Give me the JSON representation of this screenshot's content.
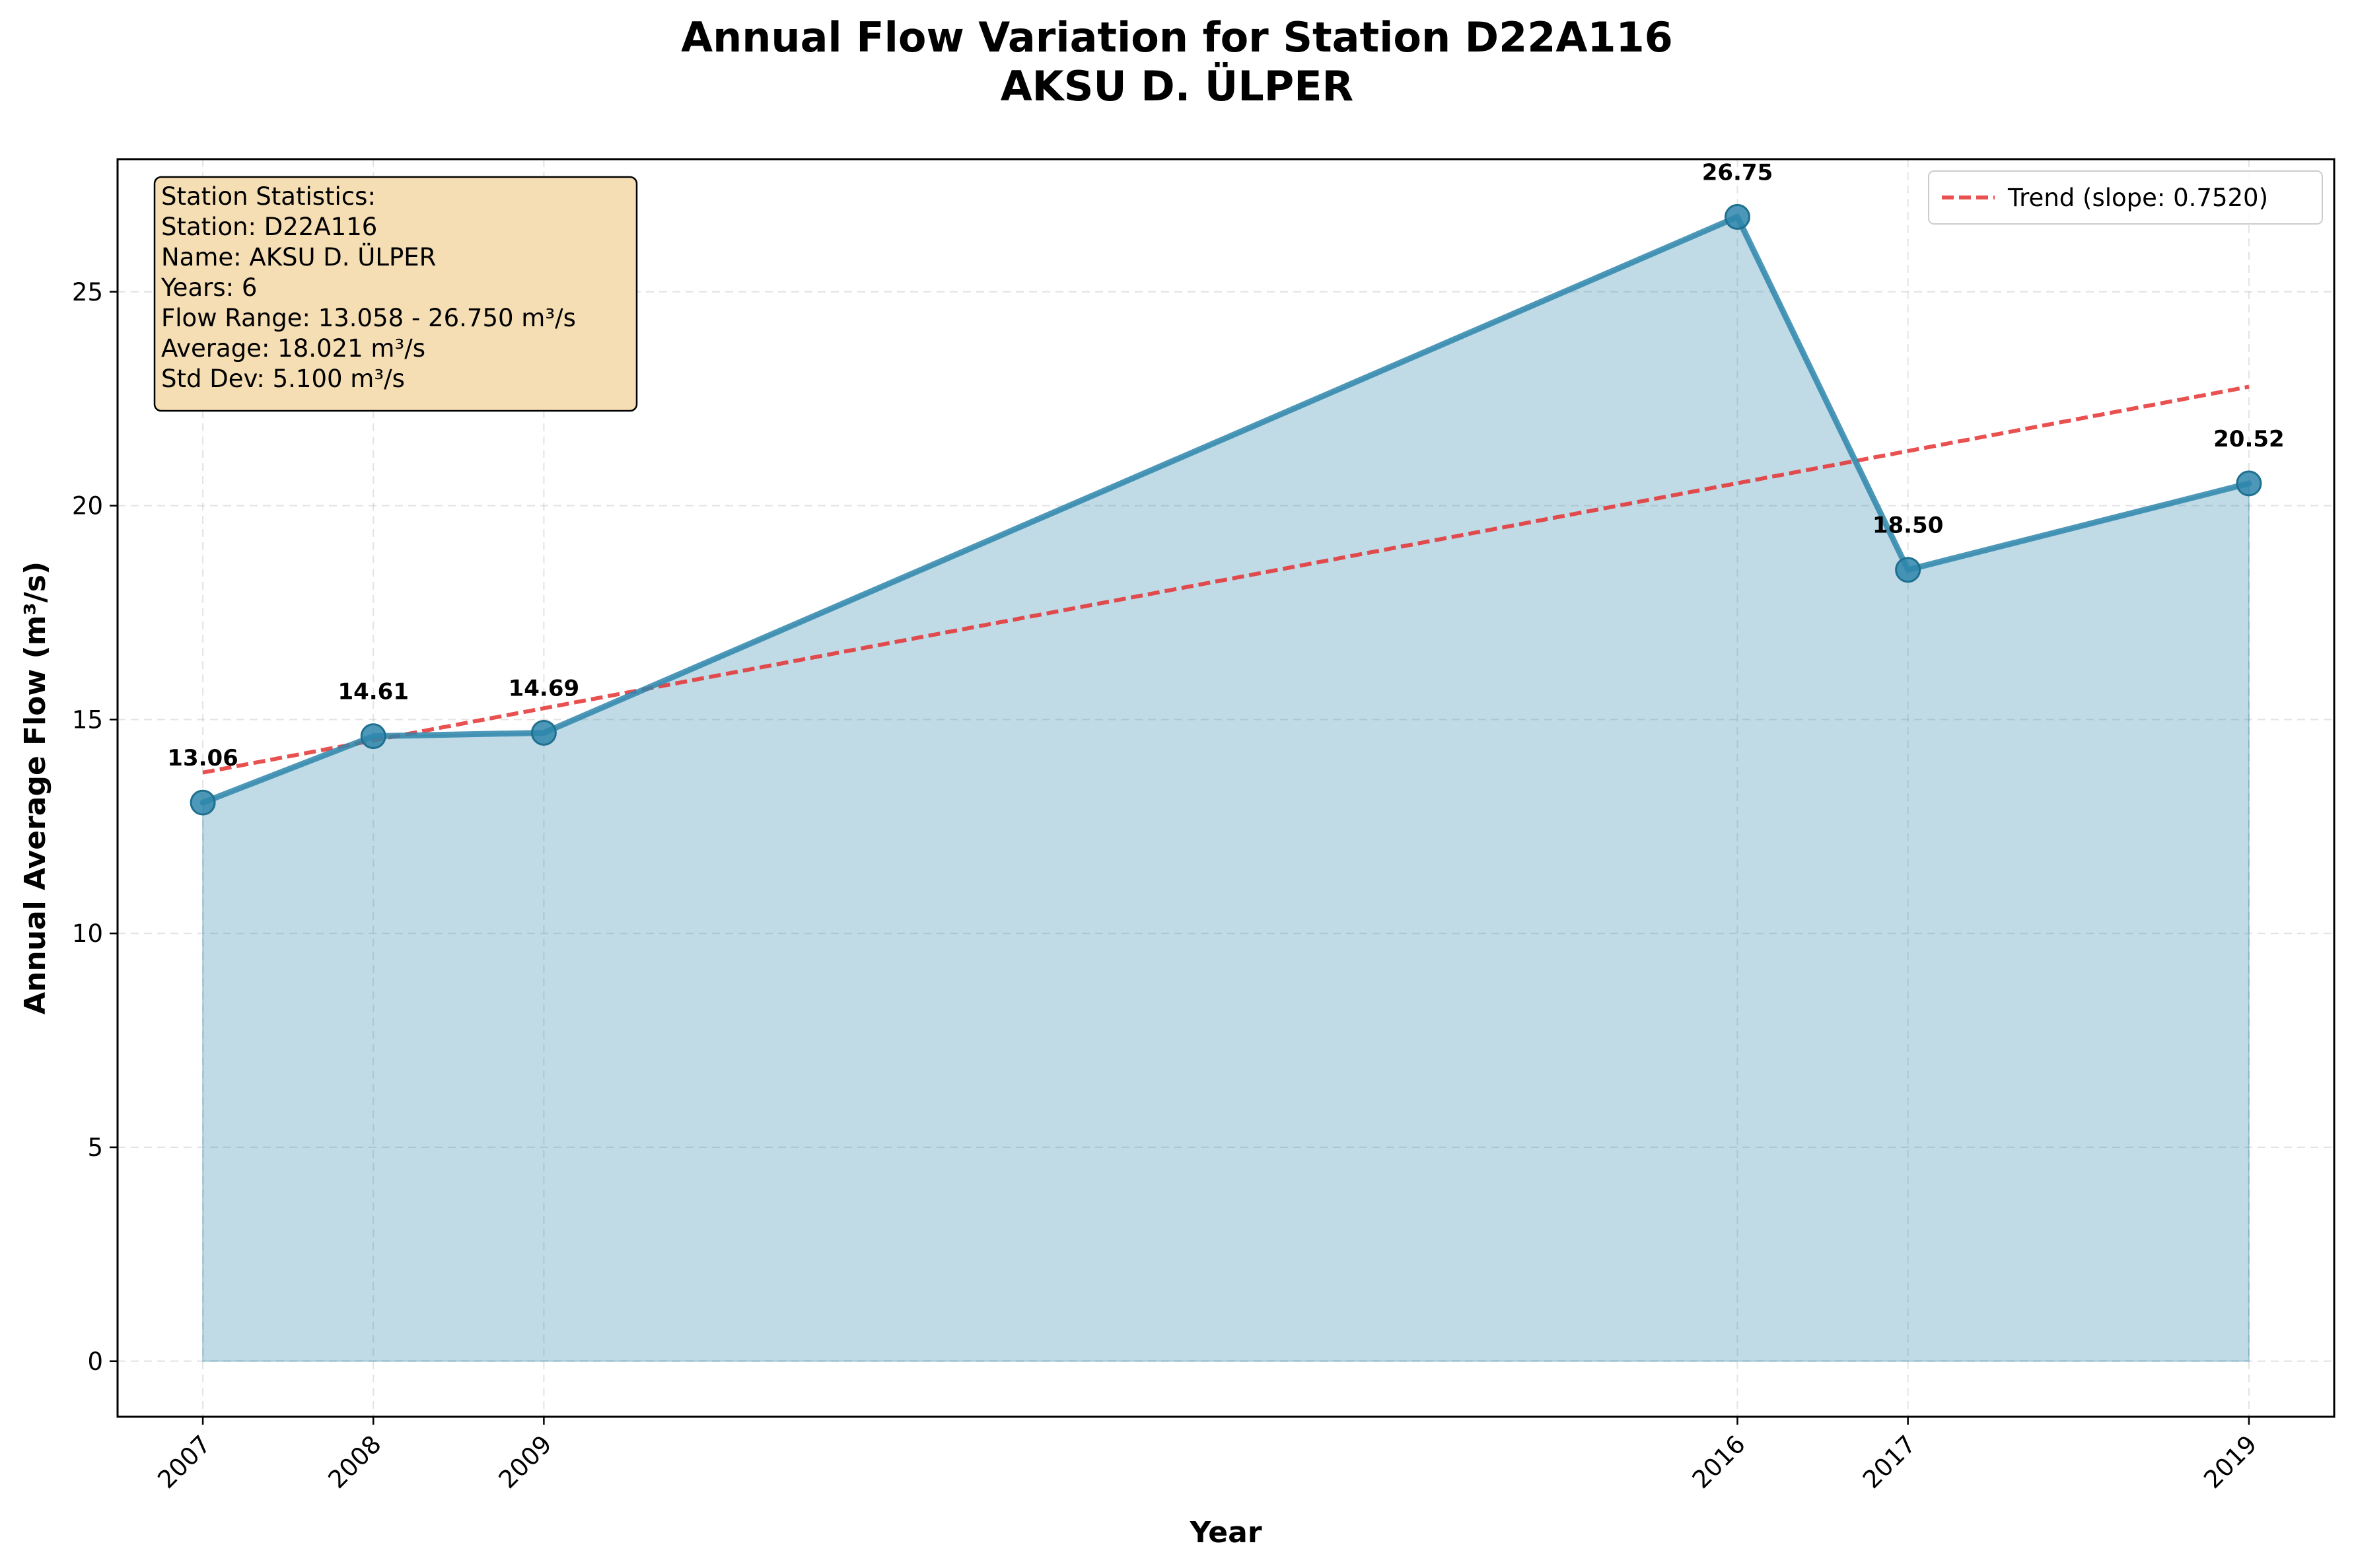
{
  "chart_data": {
    "type": "line",
    "title": "Annual Flow Variation for Station D22A116",
    "subtitle": "AKSU D. ÜLPER",
    "xlabel": "Year",
    "ylabel": "Annual Average Flow (m³/s)",
    "x": [
      2007,
      2008,
      2009,
      2016,
      2017,
      2019
    ],
    "x_tick_labels": [
      "2007",
      "2008",
      "2009",
      "2016",
      "2017",
      "2019"
    ],
    "xlim": [
      2006.5,
      2019.5
    ],
    "ylim": [
      -1.3,
      28.1
    ],
    "y_ticks": [
      0,
      5,
      10,
      15,
      20,
      25
    ],
    "grid": true,
    "series": [
      {
        "values": [
          13.058,
          14.61,
          14.69,
          26.75,
          18.5,
          20.52
        ],
        "data_labels": [
          "13.06",
          "14.61",
          "14.69",
          "26.75",
          "18.50",
          "20.52"
        ],
        "color": "#2E86AB",
        "fill": "area"
      }
    ],
    "trend": {
      "name": "Trend (slope: 0.7520)",
      "slope": 0.752,
      "start": [
        2007,
        13.76
      ],
      "end": [
        2019,
        22.78
      ],
      "color": "#e63232"
    },
    "legend_position": "top-right",
    "stats_box": {
      "lines": [
        "Station Statistics:",
        "Station: D22A116",
        "Name: AKSU D. ÜLPER",
        "Years: 6",
        "Flow Range: 13.058 - 26.750 m³/s",
        "Average: 18.021 m³/s",
        "Std Dev: 5.100 m³/s"
      ],
      "background": "#f5deb3",
      "position": "top-left"
    }
  }
}
